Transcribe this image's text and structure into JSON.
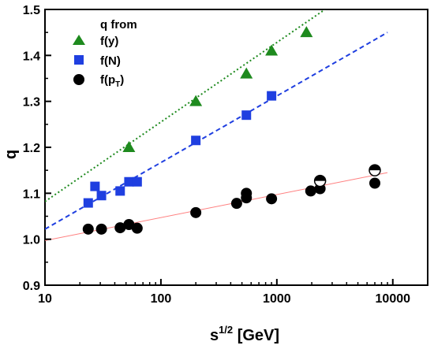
{
  "chart_data": {
    "type": "scatter",
    "title": "",
    "xlabel": "s",
    "xlabel_superscript": "1/2",
    "xlabel_unit": " [GeV]",
    "ylabel": "q",
    "x_scale": "log",
    "xlim": [
      10,
      20000
    ],
    "ylim": [
      0.9,
      1.5
    ],
    "x_ticks": [
      10,
      100,
      1000,
      10000
    ],
    "x_tick_labels": [
      "10",
      "100",
      "1000",
      "10000"
    ],
    "y_ticks": [
      0.9,
      1.0,
      1.1,
      1.2,
      1.3,
      1.4,
      1.5
    ],
    "y_tick_labels": [
      "0.9",
      "1.0",
      "1.1",
      "1.2",
      "1.3",
      "1.4",
      "1.5"
    ],
    "grid": false,
    "legend": {
      "position": "top-left",
      "title": "q from",
      "entries": [
        "f(y)",
        "f(N)",
        "f(p",
        "T",
        ")"
      ]
    },
    "series": [
      {
        "name": "f(y)",
        "marker": "triangle",
        "color": "#1e8a1e",
        "x": [
          53,
          200,
          546,
          900,
          1800
        ],
        "y": [
          1.2,
          1.3,
          1.36,
          1.41,
          1.45
        ]
      },
      {
        "name": "f(N)",
        "marker": "square",
        "color": "#1f3fe0",
        "x": [
          23.6,
          27,
          30.7,
          44.5,
          53,
          62.4,
          200,
          546,
          900
        ],
        "y": [
          1.079,
          1.115,
          1.095,
          1.105,
          1.125,
          1.125,
          1.215,
          1.27,
          1.312
        ]
      },
      {
        "name": "f(pT)",
        "marker": "circle",
        "color": "#000000",
        "x": [
          23.6,
          30.7,
          44.5,
          53,
          62.4,
          200,
          450,
          546,
          546,
          900,
          1960,
          2360,
          7000
        ],
        "y": [
          1.022,
          1.022,
          1.025,
          1.032,
          1.024,
          1.058,
          1.078,
          1.09,
          1.1,
          1.088,
          1.105,
          1.11,
          1.122
        ]
      },
      {
        "marker": "half-circle",
        "color": "#000000",
        "x": [
          2360,
          7000
        ],
        "y": [
          1.127,
          1.15
        ]
      }
    ],
    "fit_lines": [
      {
        "color": "#1e8a1e",
        "style": "dotted",
        "x": [
          10,
          2600
        ],
        "y": [
          1.082,
          1.5
        ]
      },
      {
        "color": "#1f3fe0",
        "style": "dashed",
        "x": [
          10,
          9000
        ],
        "y": [
          1.022,
          1.45
        ]
      },
      {
        "color": "#ff8080",
        "style": "solid",
        "x": [
          10,
          9000
        ],
        "y": [
          0.997,
          1.145
        ]
      }
    ]
  }
}
